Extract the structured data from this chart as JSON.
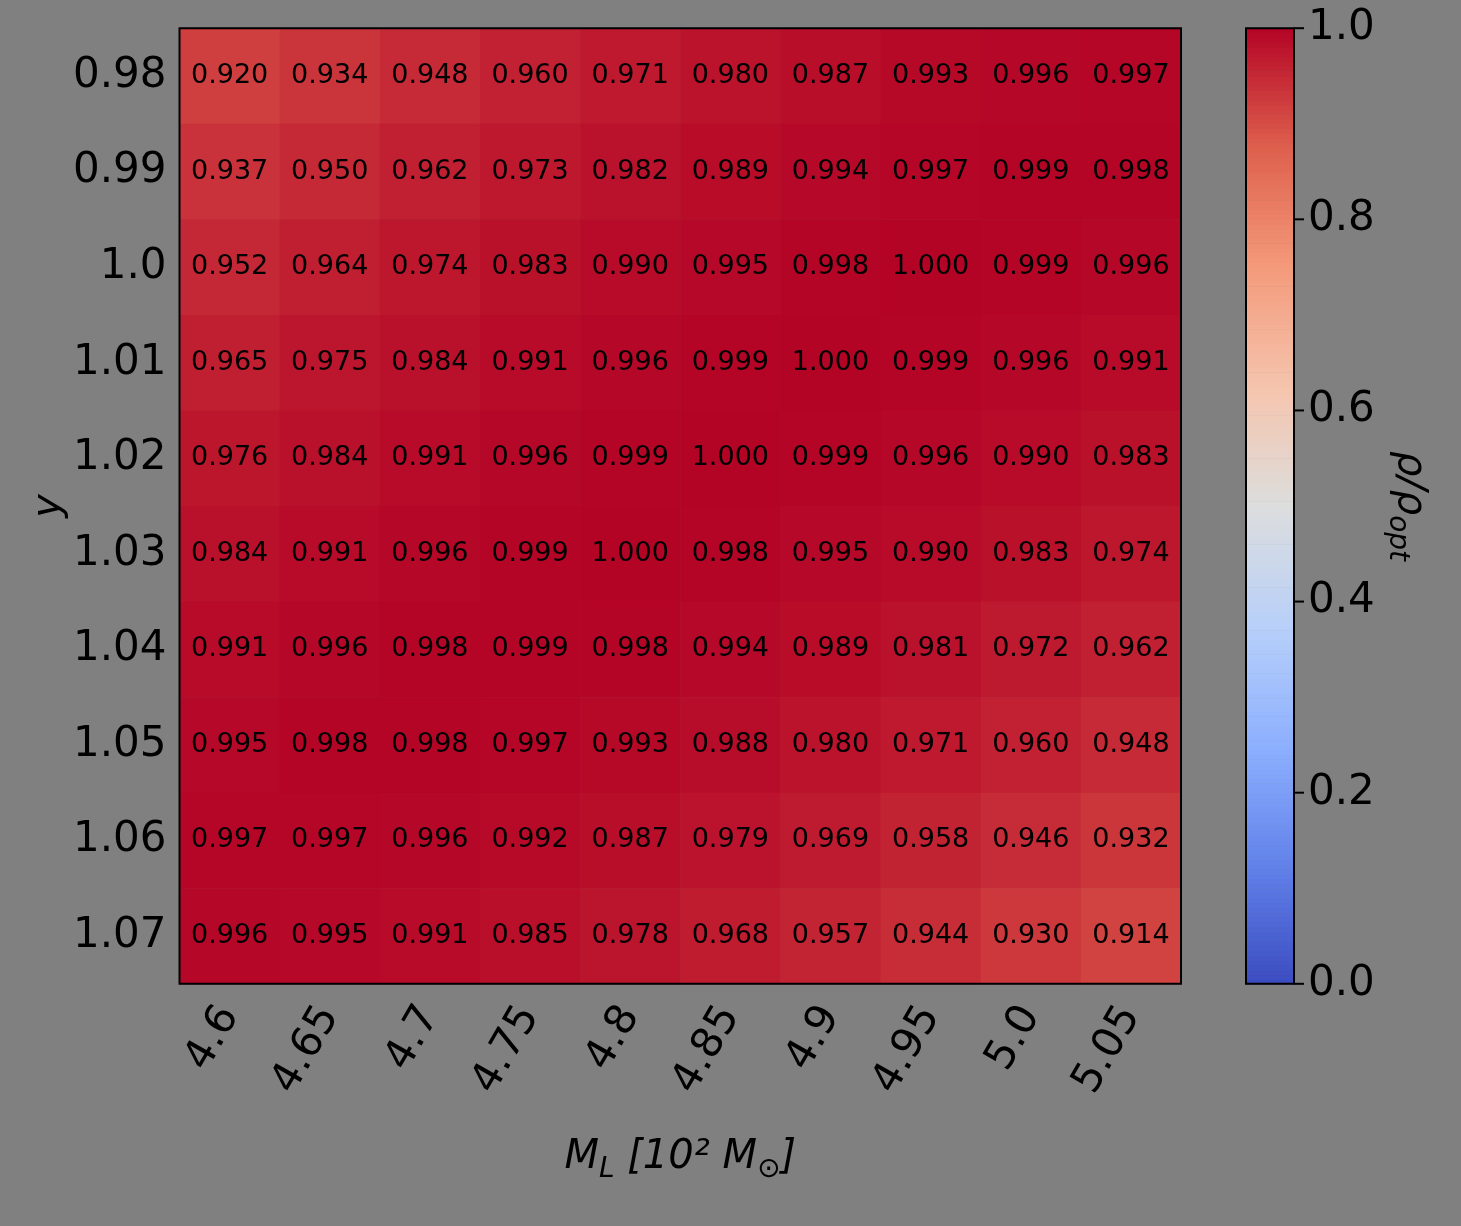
{
  "chart_data": {
    "type": "heatmap",
    "xlabel": "M$_{L}$ [10² M$_{⊙}$]",
    "ylabel": "y",
    "clabel": "ρ/ρ$_{opt}$",
    "categories": [
      "4.6",
      "4.65",
      "4.7",
      "4.75",
      "4.8",
      "4.85",
      "4.9",
      "4.95",
      "5.0",
      "5.05"
    ],
    "y_categories": [
      "0.98",
      "0.99",
      "1.0",
      "1.01",
      "1.02",
      "1.03",
      "1.04",
      "1.05",
      "1.06",
      "1.07"
    ],
    "cells": [
      [
        0.92,
        0.934,
        0.948,
        0.96,
        0.971,
        0.98,
        0.987,
        0.993,
        0.996,
        0.997
      ],
      [
        0.937,
        0.95,
        0.962,
        0.973,
        0.982,
        0.989,
        0.994,
        0.997,
        0.999,
        0.998
      ],
      [
        0.952,
        0.964,
        0.974,
        0.983,
        0.99,
        0.995,
        0.998,
        1.0,
        0.999,
        0.996
      ],
      [
        0.965,
        0.975,
        0.984,
        0.991,
        0.996,
        0.999,
        1.0,
        0.999,
        0.996,
        0.991
      ],
      [
        0.976,
        0.984,
        0.991,
        0.996,
        0.999,
        1.0,
        0.999,
        0.996,
        0.99,
        0.983
      ],
      [
        0.984,
        0.991,
        0.996,
        0.999,
        1.0,
        0.998,
        0.995,
        0.99,
        0.983,
        0.974
      ],
      [
        0.991,
        0.996,
        0.998,
        0.999,
        0.998,
        0.994,
        0.989,
        0.981,
        0.972,
        0.962
      ],
      [
        0.995,
        0.998,
        0.998,
        0.997,
        0.993,
        0.988,
        0.98,
        0.971,
        0.96,
        0.948
      ],
      [
        0.997,
        0.997,
        0.996,
        0.992,
        0.987,
        0.979,
        0.969,
        0.958,
        0.946,
        0.932
      ],
      [
        0.996,
        0.995,
        0.991,
        0.985,
        0.978,
        0.968,
        0.957,
        0.944,
        0.93,
        0.914
      ]
    ],
    "cell_labels": [
      [
        "0.920",
        "0.934",
        "0.948",
        "0.960",
        "0.971",
        "0.980",
        "0.987",
        "0.993",
        "0.996",
        "0.997"
      ],
      [
        "0.937",
        "0.950",
        "0.962",
        "0.973",
        "0.982",
        "0.989",
        "0.994",
        "0.997",
        "0.999",
        "0.998"
      ],
      [
        "0.952",
        "0.964",
        "0.974",
        "0.983",
        "0.990",
        "0.995",
        "0.998",
        "1.000",
        "0.999",
        "0.996"
      ],
      [
        "0.965",
        "0.975",
        "0.984",
        "0.991",
        "0.996",
        "0.999",
        "1.000",
        "0.999",
        "0.996",
        "0.991"
      ],
      [
        "0.976",
        "0.984",
        "0.991",
        "0.996",
        "0.999",
        "1.000",
        "0.999",
        "0.996",
        "0.990",
        "0.983"
      ],
      [
        "0.984",
        "0.991",
        "0.996",
        "0.999",
        "1.000",
        "0.998",
        "0.995",
        "0.990",
        "0.983",
        "0.974"
      ],
      [
        "0.991",
        "0.996",
        "0.998",
        "0.999",
        "0.998",
        "0.994",
        "0.989",
        "0.981",
        "0.972",
        "0.962"
      ],
      [
        "0.995",
        "0.998",
        "0.998",
        "0.997",
        "0.993",
        "0.988",
        "0.980",
        "0.971",
        "0.960",
        "0.948"
      ],
      [
        "0.997",
        "0.997",
        "0.996",
        "0.992",
        "0.987",
        "0.979",
        "0.969",
        "0.958",
        "0.946",
        "0.932"
      ],
      [
        "0.996",
        "0.995",
        "0.991",
        "0.985",
        "0.978",
        "0.968",
        "0.957",
        "0.944",
        "0.930",
        "0.914"
      ]
    ],
    "clim": [
      0,
      1
    ],
    "cticks": [
      {
        "value": 0,
        "label": "0.0"
      },
      {
        "value": 0.2,
        "label": "0.2"
      },
      {
        "value": 0.4,
        "label": "0.4"
      },
      {
        "value": 0.6,
        "label": "0.6"
      },
      {
        "value": 0.8,
        "label": "0.8"
      },
      {
        "value": 1,
        "label": "1.0"
      }
    ],
    "data_labels": true
  }
}
